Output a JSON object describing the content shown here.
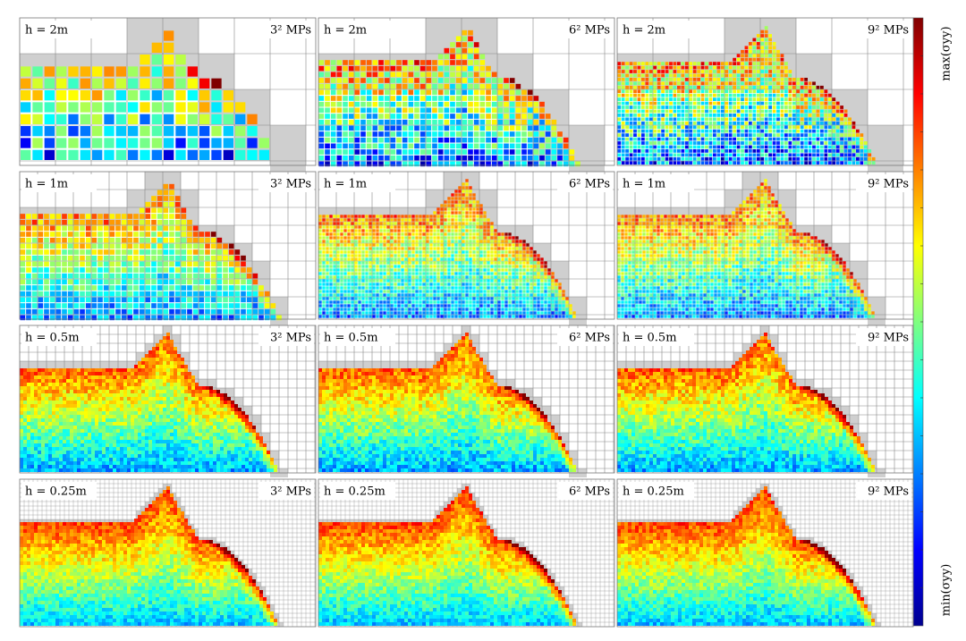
{
  "panels": [
    {
      "h": "h = 2m",
      "mps": "3² MPs"
    },
    {
      "h": "h = 2m",
      "mps": "6² MPs"
    },
    {
      "h": "h = 2m",
      "mps": "9² MPs"
    },
    {
      "h": "h = 1m",
      "mps": "3² MPs"
    },
    {
      "h": "h = 1m",
      "mps": "6² MPs"
    },
    {
      "h": "h = 1m",
      "mps": "9² MPs"
    },
    {
      "h": "h = 0.5m",
      "mps": "3² MPs"
    },
    {
      "h": "h = 0.5m",
      "mps": "6² MPs"
    },
    {
      "h": "h = 0.5m",
      "mps": "9² MPs"
    },
    {
      "h": "h = 0.25m",
      "mps": "3² MPs"
    },
    {
      "h": "h = 0.25m",
      "mps": "6² MPs"
    },
    {
      "h": "h = 0.25m",
      "mps": "9² MPs"
    }
  ],
  "colorbar": {
    "max": "max(σyy)",
    "min": "min(σyy)"
  }
}
